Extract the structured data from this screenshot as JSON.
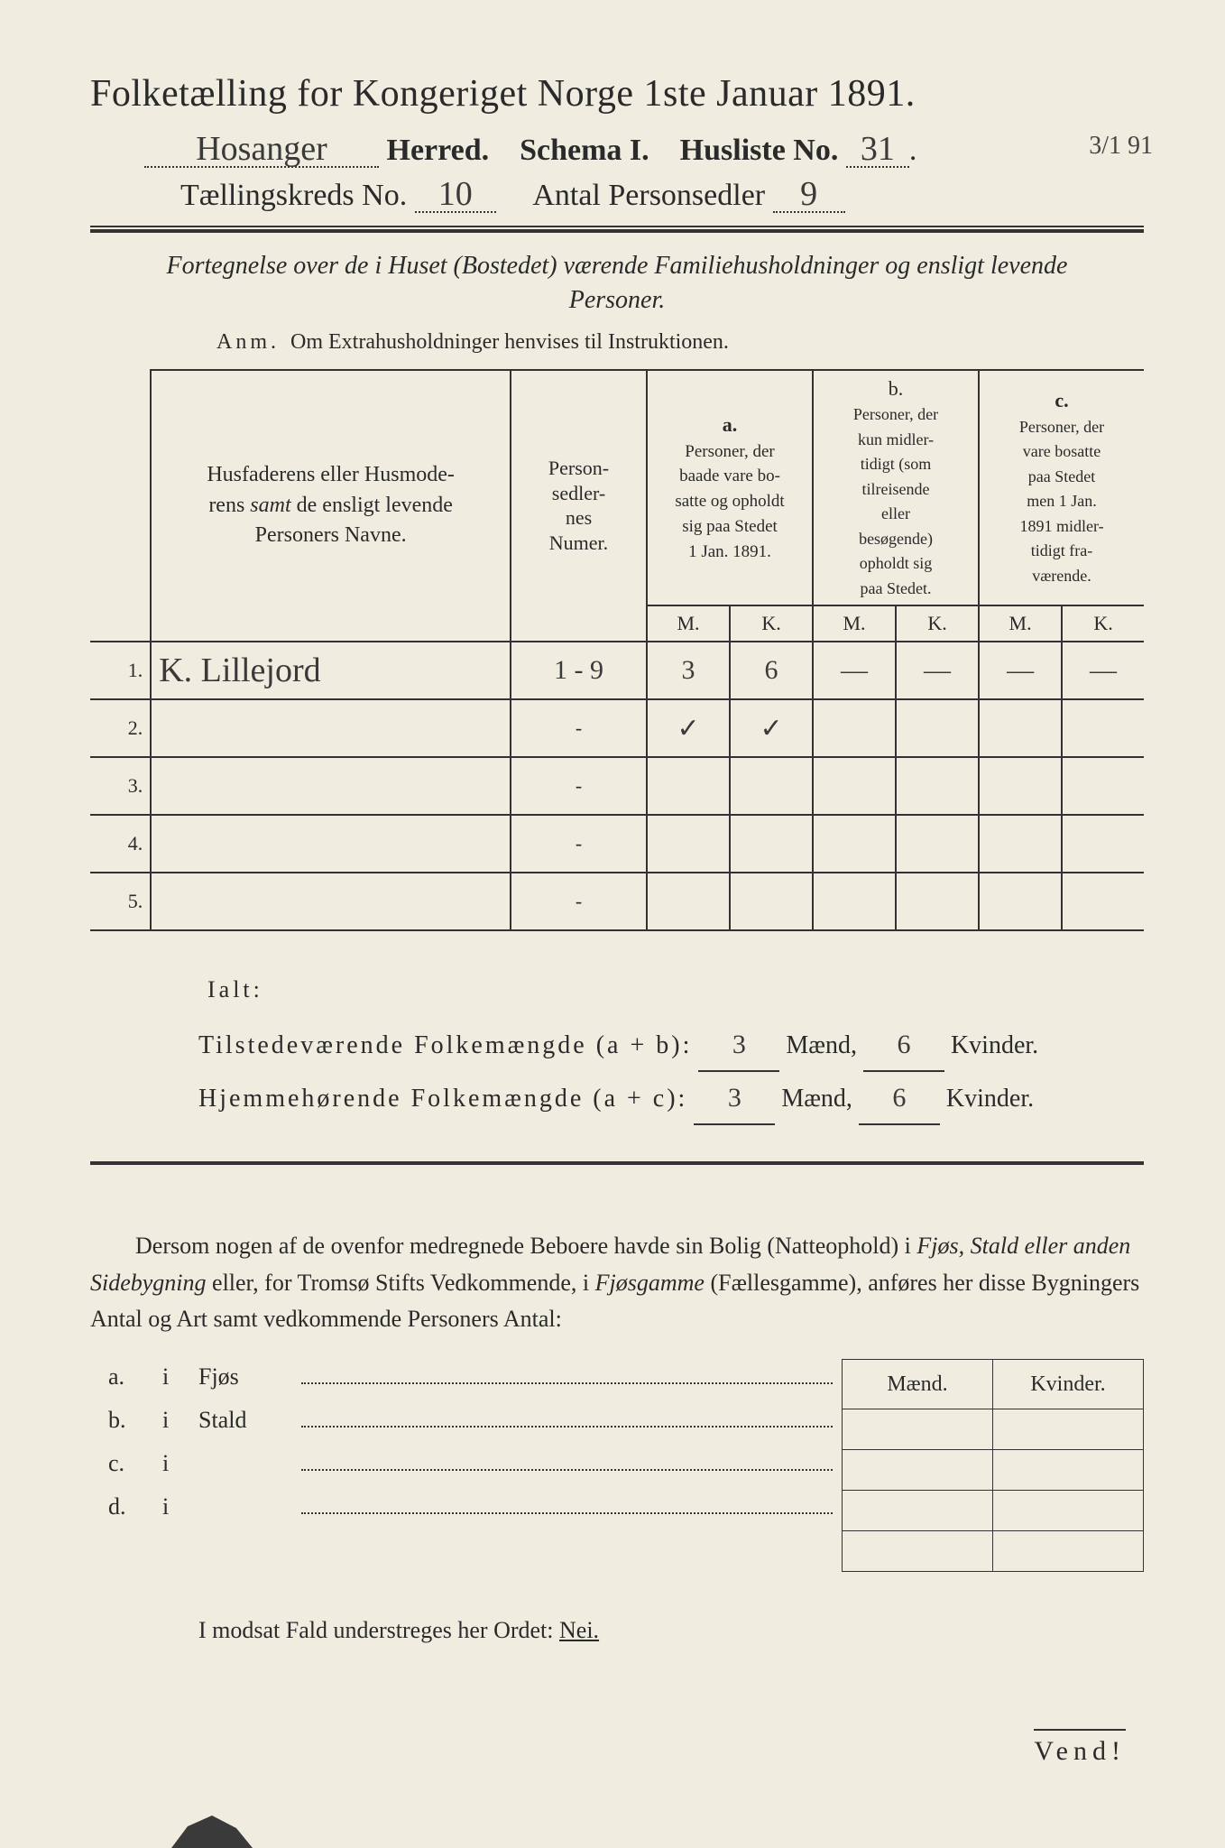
{
  "header": {
    "title": "Folketælling for Kongeriget Norge 1ste Januar 1891.",
    "herred_value": "Hosanger",
    "herred_label": "Herred.",
    "schema_label": "Schema I.",
    "husliste_label": "Husliste No.",
    "husliste_value": "31",
    "margin_note": "3/1 91",
    "kreds_label": "Tællingskreds No.",
    "kreds_value": "10",
    "antal_label": "Antal Personsedler",
    "antal_value": "9"
  },
  "subtitle": "Fortegnelse over de i Huset (Bostedet) værende Familiehusholdninger og ensligt levende Personer.",
  "anm": {
    "label": "Anm.",
    "text": "Om Extrahusholdninger henvises til Instruktionen."
  },
  "table": {
    "col_names": "Husfaderens eller Husmoderens samt de ensligt levende Personers Navne.",
    "col_numer": "Person-sedler-nes Numer.",
    "col_a_label": "a.",
    "col_a_text": "Personer, der baade vare bosatte og opholdt sig paa Stedet 1 Jan. 1891.",
    "col_b_label": "b.",
    "col_b_text": "Personer, der kun midlertidigt (som tilreisende eller besøgende) opholdt sig paa Stedet.",
    "col_c_label": "c.",
    "col_c_text": "Personer, der vare bosatte paa Stedet men 1 Jan. 1891 midlertidigt fraværende.",
    "m": "M.",
    "k": "K.",
    "rows": [
      {
        "n": "1.",
        "name": "K. Lillejord",
        "numer": "1 - 9",
        "a_m": "3",
        "a_k": "6",
        "b_m": "—",
        "b_k": "—",
        "c_m": "—",
        "c_k": "—"
      },
      {
        "n": "2.",
        "name": "",
        "numer": "-",
        "a_m": "✓",
        "a_k": "✓",
        "b_m": "",
        "b_k": "",
        "c_m": "",
        "c_k": ""
      },
      {
        "n": "3.",
        "name": "",
        "numer": "-",
        "a_m": "",
        "a_k": "",
        "b_m": "",
        "b_k": "",
        "c_m": "",
        "c_k": ""
      },
      {
        "n": "4.",
        "name": "",
        "numer": "-",
        "a_m": "",
        "a_k": "",
        "b_m": "",
        "b_k": "",
        "c_m": "",
        "c_k": ""
      },
      {
        "n": "5.",
        "name": "",
        "numer": "-",
        "a_m": "",
        "a_k": "",
        "b_m": "",
        "b_k": "",
        "c_m": "",
        "c_k": ""
      }
    ]
  },
  "totals": {
    "ialt": "Ialt:",
    "line_ab_label": "Tilstedeværende Folkemængde (a + b):",
    "line_ac_label": "Hjemmehørende Folkemængde (a + c):",
    "ab_m": "3",
    "ab_k": "6",
    "ac_m": "3",
    "ac_k": "6",
    "maend": "Mænd,",
    "kvinder": "Kvinder."
  },
  "paragraph": "Dersom nogen af de ovenfor medregnede Beboere havde sin Bolig (Natteophold) i Fjøs, Stald eller anden Sidebygning eller, for Tromsø Stifts Vedkommende, i Fjøsgamme (Fællesgamme), anføres her disse Bygningers Antal og Art samt vedkommende Personers Antal:",
  "buildings": {
    "maend": "Mænd.",
    "kvinder": "Kvinder.",
    "rows": [
      {
        "lab": "a.",
        "i": "i",
        "name": "Fjøs"
      },
      {
        "lab": "b.",
        "i": "i",
        "name": "Stald"
      },
      {
        "lab": "c.",
        "i": "i",
        "name": ""
      },
      {
        "lab": "d.",
        "i": "i",
        "name": ""
      }
    ]
  },
  "nei_line": "I modsat Fald understreges her Ordet:",
  "nei": "Nei.",
  "vend": "Vend!",
  "colors": {
    "paper": "#f0ede0",
    "ink": "#2a2a2a",
    "background": "#3a3a3a"
  }
}
